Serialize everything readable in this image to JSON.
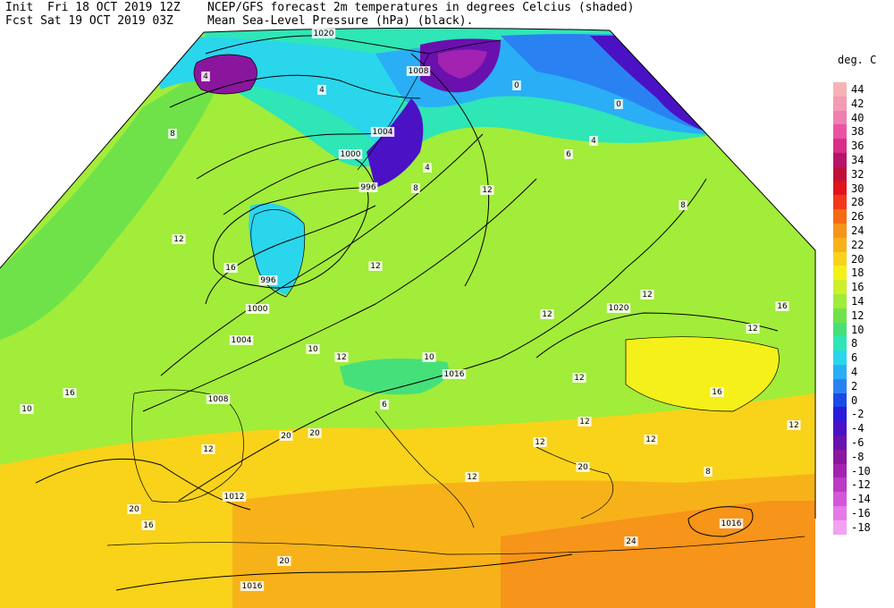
{
  "header": {
    "init_label": "Init",
    "init_time": "Fri 18 OCT 2019 12Z",
    "fcst_label": "Fcst",
    "fcst_time": "Sat 19 OCT 2019 03Z",
    "line1": "NCEP/GFS forecast 2m temperatures in degrees Celcius (shaded)",
    "line2": "Mean Sea-Level Pressure (hPa) (black)."
  },
  "legend": {
    "title": "deg. C",
    "items": [
      {
        "label": "44",
        "color": "#f7b3b3"
      },
      {
        "label": "42",
        "color": "#f39bb3"
      },
      {
        "label": "40",
        "color": "#ef7fae"
      },
      {
        "label": "38",
        "color": "#ec52a3"
      },
      {
        "label": "36",
        "color": "#d92e8a"
      },
      {
        "label": "34",
        "color": "#b8136a"
      },
      {
        "label": "32",
        "color": "#c0103a"
      },
      {
        "label": "30",
        "color": "#e0141a"
      },
      {
        "label": "28",
        "color": "#f2381a"
      },
      {
        "label": "26",
        "color": "#f56a12"
      },
      {
        "label": "24",
        "color": "#f7941a"
      },
      {
        "label": "22",
        "color": "#f7b21a"
      },
      {
        "label": "20",
        "color": "#f9d21a"
      },
      {
        "label": "18",
        "color": "#f5f01a"
      },
      {
        "label": "16",
        "color": "#cdf02a"
      },
      {
        "label": "14",
        "color": "#a2ec3a"
      },
      {
        "label": "12",
        "color": "#6fe24a"
      },
      {
        "label": "10",
        "color": "#46e07a"
      },
      {
        "label": "8",
        "color": "#2ee6b6"
      },
      {
        "label": "6",
        "color": "#2ad6ec"
      },
      {
        "label": "4",
        "color": "#2aaef5"
      },
      {
        "label": "2",
        "color": "#2a82f2"
      },
      {
        "label": "0",
        "color": "#1a4ae6"
      },
      {
        "label": "-2",
        "color": "#2a1adc"
      },
      {
        "label": "-4",
        "color": "#4a12c4"
      },
      {
        "label": "-6",
        "color": "#6a10ae"
      },
      {
        "label": "-8",
        "color": "#8a169e"
      },
      {
        "label": "-10",
        "color": "#a222b2"
      },
      {
        "label": "-12",
        "color": "#bc3ac6"
      },
      {
        "label": "-14",
        "color": "#d456da"
      },
      {
        "label": "-16",
        "color": "#e67ae8"
      },
      {
        "label": "-18",
        "color": "#f2a2f2"
      }
    ]
  },
  "isobar_labels": [
    "1020",
    "1008",
    "1004",
    "1000",
    "996",
    "996",
    "1000",
    "1004",
    "1008",
    "1012",
    "1016",
    "1016",
    "1020",
    "1016"
  ],
  "temperature_labels": [
    "4",
    "8",
    "4",
    "0",
    "0",
    "4",
    "6",
    "8",
    "8",
    "4",
    "12",
    "12",
    "12",
    "12",
    "12",
    "10",
    "12",
    "12",
    "16",
    "10",
    "16",
    "12",
    "20",
    "20",
    "16",
    "20",
    "20",
    "24",
    "12",
    "12",
    "12",
    "12",
    "16",
    "16",
    "12",
    "8",
    "10",
    "6",
    "12",
    "20"
  ]
}
